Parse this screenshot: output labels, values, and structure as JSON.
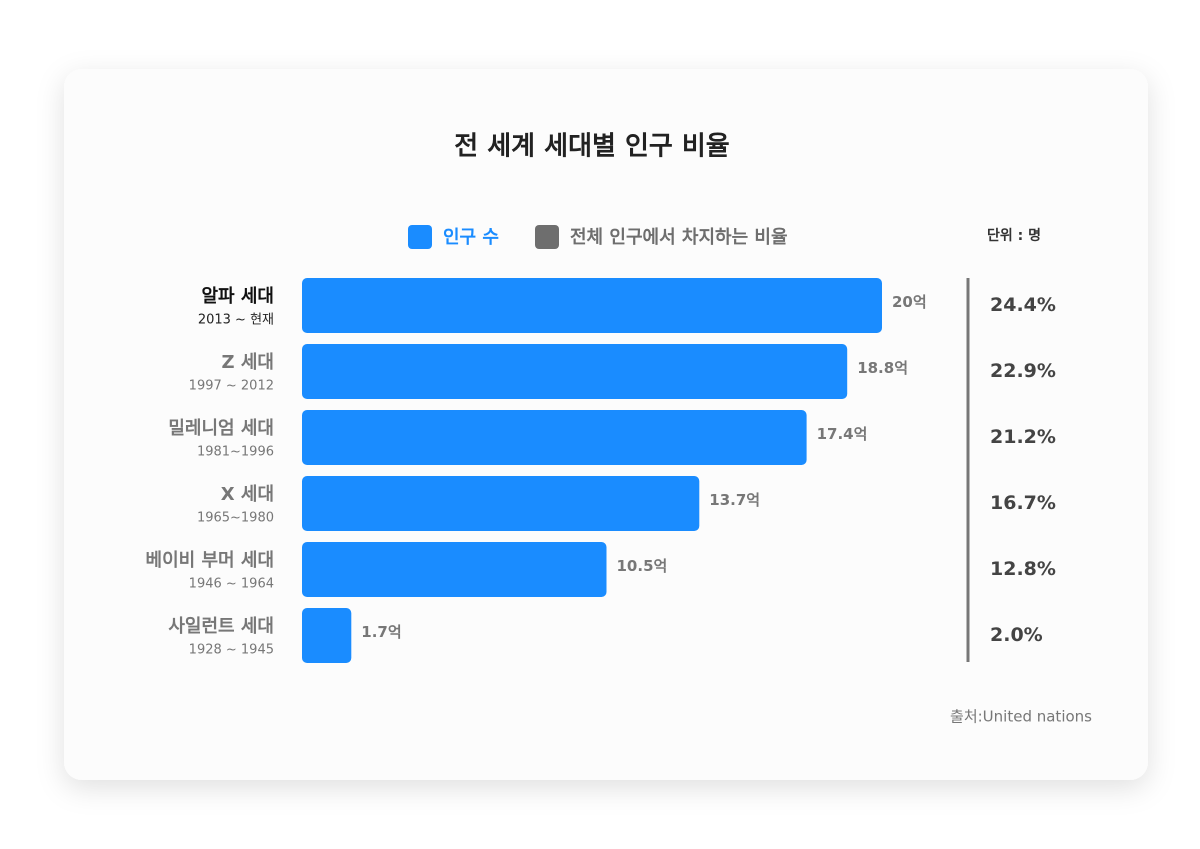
{
  "chart_data": {
    "type": "bar",
    "orientation": "horizontal",
    "title": "전 세계 세대별 인구 비율",
    "unit_note": "단위 : 명",
    "source": "출처:United nations",
    "categories": [
      "알파 세대",
      "Z 세대",
      "밀레니엄 세대",
      "X 세대",
      "베이비 부머 세대",
      "사일런트 세대"
    ],
    "periods": [
      "2013 ~ 현재",
      "1997 ~ 2012",
      "1981~1996",
      "1965~1980",
      "1946 ~ 1964",
      "1928 ~ 1945"
    ],
    "xlim": [
      0,
      20
    ],
    "series": [
      {
        "name": "인구 수",
        "color": "#1a8cff",
        "values": [
          20,
          18.8,
          17.4,
          13.7,
          10.5,
          1.7
        ],
        "value_labels": [
          "20억",
          "18.8억",
          "17.4억",
          "13.7억",
          "10.5억",
          "1.7억"
        ]
      },
      {
        "name": "전체 인구에서 차지하는 비율",
        "color": "#6e6e6e",
        "values": [
          24.4,
          22.9,
          21.2,
          16.7,
          12.8,
          2.0
        ],
        "value_labels": [
          "24.4%",
          "22.9%",
          "21.2%",
          "16.7%",
          "12.8%",
          "2.0%"
        ]
      }
    ]
  }
}
